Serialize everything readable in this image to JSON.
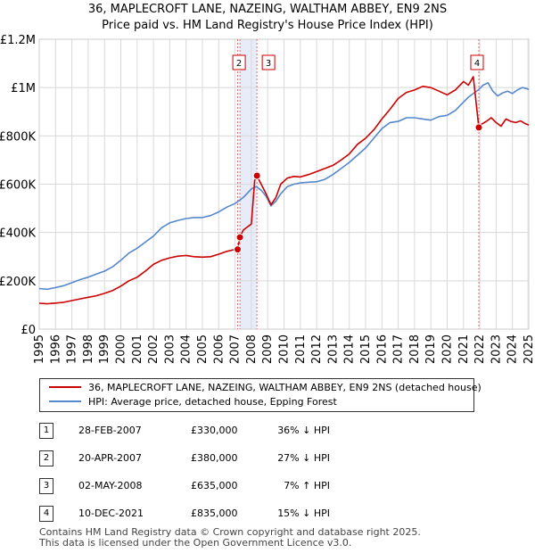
{
  "chart_data": {
    "type": "line",
    "title": "36, MAPLECROFT LANE, NAZEING, WALTHAM ABBEY, EN9 2NS",
    "subtitle": "Price paid vs. HM Land Registry's House Price Index (HPI)",
    "xlabel": "",
    "ylabel": "",
    "xlim": [
      1995,
      2025
    ],
    "ylim": [
      0,
      1200000
    ],
    "x_ticks": [
      1995,
      1996,
      1997,
      1998,
      1999,
      2000,
      2001,
      2002,
      2003,
      2004,
      2005,
      2006,
      2007,
      2008,
      2009,
      2010,
      2011,
      2012,
      2013,
      2014,
      2015,
      2016,
      2017,
      2018,
      2019,
      2020,
      2021,
      2022,
      2023,
      2024,
      2025
    ],
    "x_tick_labels": [
      "1995",
      "1996",
      "1997",
      "1998",
      "1999",
      "2000",
      "2001",
      "2002",
      "2003",
      "2004",
      "2005",
      "2006",
      "2007",
      "2008",
      "2009",
      "2010",
      "2011",
      "2012",
      "2013",
      "2014",
      "2015",
      "2016",
      "2017",
      "2018",
      "2019",
      "2020",
      "2021",
      "2022",
      "2023",
      "2024",
      "2025"
    ],
    "y_ticks": [
      0,
      200000,
      400000,
      600000,
      800000,
      1000000,
      1200000
    ],
    "y_tick_labels": [
      "£0",
      "£200K",
      "£400K",
      "£600K",
      "£800K",
      "£1M",
      "£1.2M"
    ],
    "grid": true,
    "series": [
      {
        "name": "36, MAPLECROFT LANE, NAZEING, WALTHAM ABBEY, EN9 2NS (detached house)",
        "color": "#cc0000",
        "x": [
          1995.0,
          1995.5,
          1996.0,
          1996.5,
          1997.0,
          1997.5,
          1998.0,
          1998.5,
          1999.0,
          1999.5,
          2000.0,
          2000.5,
          2001.0,
          2001.5,
          2002.0,
          2002.5,
          2003.0,
          2003.5,
          2004.0,
          2004.5,
          2005.0,
          2005.5,
          2006.0,
          2006.5,
          2007.0,
          2007.16,
          2007.3,
          2007.5,
          2007.8,
          2008.0,
          2008.2,
          2008.34,
          2008.6,
          2008.9,
          2009.2,
          2009.5,
          2009.8,
          2010.2,
          2010.6,
          2011.0,
          2011.5,
          2012.0,
          2012.5,
          2013.0,
          2013.5,
          2014.0,
          2014.5,
          2015.0,
          2015.5,
          2016.0,
          2016.5,
          2017.0,
          2017.5,
          2018.0,
          2018.5,
          2019.0,
          2019.5,
          2020.0,
          2020.5,
          2021.0,
          2021.3,
          2021.6,
          2021.94,
          2022.1,
          2022.4,
          2022.7,
          2023.0,
          2023.3,
          2023.6,
          2023.9,
          2024.2,
          2024.5,
          2024.8,
          2025.0
        ],
        "values": [
          107000,
          105000,
          108000,
          111000,
          118000,
          125000,
          132000,
          138000,
          148000,
          160000,
          178000,
          200000,
          215000,
          240000,
          268000,
          285000,
          295000,
          302000,
          305000,
          300000,
          298000,
          300000,
          310000,
          322000,
          330000,
          330000,
          380000,
          410000,
          425000,
          435000,
          615000,
          635000,
          600000,
          560000,
          515000,
          545000,
          600000,
          625000,
          632000,
          630000,
          640000,
          652000,
          665000,
          678000,
          700000,
          725000,
          765000,
          790000,
          825000,
          870000,
          910000,
          955000,
          980000,
          990000,
          1005000,
          1000000,
          985000,
          970000,
          990000,
          1025000,
          1010000,
          1045000,
          835000,
          848000,
          860000,
          875000,
          855000,
          840000,
          870000,
          860000,
          855000,
          862000,
          850000,
          845000
        ]
      },
      {
        "name": "HPI: Average price, detached house, Epping Forest",
        "color": "#5588cc",
        "x": [
          1995.0,
          1995.5,
          1996.0,
          1996.5,
          1997.0,
          1997.5,
          1998.0,
          1998.5,
          1999.0,
          1999.5,
          2000.0,
          2000.5,
          2001.0,
          2001.5,
          2002.0,
          2002.5,
          2003.0,
          2003.5,
          2004.0,
          2004.5,
          2005.0,
          2005.5,
          2006.0,
          2006.5,
          2007.0,
          2007.5,
          2008.0,
          2008.3,
          2008.6,
          2008.9,
          2009.2,
          2009.5,
          2009.8,
          2010.2,
          2010.6,
          2011.0,
          2011.5,
          2012.0,
          2012.5,
          2013.0,
          2013.5,
          2014.0,
          2014.5,
          2015.0,
          2015.5,
          2016.0,
          2016.5,
          2017.0,
          2017.5,
          2018.0,
          2018.5,
          2019.0,
          2019.5,
          2020.0,
          2020.5,
          2021.0,
          2021.3,
          2021.6,
          2021.9,
          2022.2,
          2022.5,
          2022.8,
          2023.1,
          2023.4,
          2023.7,
          2024.0,
          2024.3,
          2024.6,
          2024.9,
          2025.0
        ],
        "values": [
          168000,
          165000,
          172000,
          180000,
          192000,
          205000,
          215000,
          228000,
          240000,
          258000,
          285000,
          315000,
          335000,
          360000,
          385000,
          420000,
          440000,
          450000,
          458000,
          462000,
          462000,
          470000,
          485000,
          505000,
          520000,
          545000,
          580000,
          590000,
          575000,
          550000,
          510000,
          530000,
          560000,
          590000,
          600000,
          605000,
          608000,
          610000,
          620000,
          640000,
          665000,
          690000,
          720000,
          750000,
          790000,
          830000,
          855000,
          860000,
          875000,
          875000,
          870000,
          865000,
          880000,
          885000,
          905000,
          940000,
          960000,
          975000,
          990000,
          1010000,
          1020000,
          985000,
          965000,
          978000,
          985000,
          975000,
          990000,
          1000000,
          995000,
          992000
        ]
      }
    ],
    "markers": [
      {
        "label": "1",
        "x": 2007.16,
        "value": 330000
      },
      {
        "label": "2",
        "x": 2007.3,
        "value": 380000
      },
      {
        "label": "3",
        "x": 2008.34,
        "value": 635000
      },
      {
        "label": "4",
        "x": 2021.94,
        "value": 835000
      }
    ],
    "marker_color": "#cc0000",
    "marker_line_color": "#e07070",
    "shade_color": "#e8ecf8"
  },
  "legend": {
    "items": [
      {
        "label": "36, MAPLECROFT LANE, NAZEING, WALTHAM ABBEY, EN9 2NS (detached house)",
        "color": "#cc0000"
      },
      {
        "label": "HPI: Average price, detached house, Epping Forest",
        "color": "#5588cc"
      }
    ]
  },
  "purchases": [
    {
      "num": "1",
      "date": "28-FEB-2007",
      "price": "£330,000",
      "hpi": "36% ↓ HPI"
    },
    {
      "num": "2",
      "date": "20-APR-2007",
      "price": "£380,000",
      "hpi": "27% ↓ HPI"
    },
    {
      "num": "3",
      "date": "02-MAY-2008",
      "price": "£635,000",
      "hpi": "7% ↑ HPI"
    },
    {
      "num": "4",
      "date": "10-DEC-2021",
      "price": "£835,000",
      "hpi": "15% ↓ HPI"
    }
  ],
  "footer": {
    "line1": "Contains HM Land Registry data © Crown copyright and database right 2025.",
    "line2": "This data is licensed under the Open Government Licence v3.0."
  }
}
